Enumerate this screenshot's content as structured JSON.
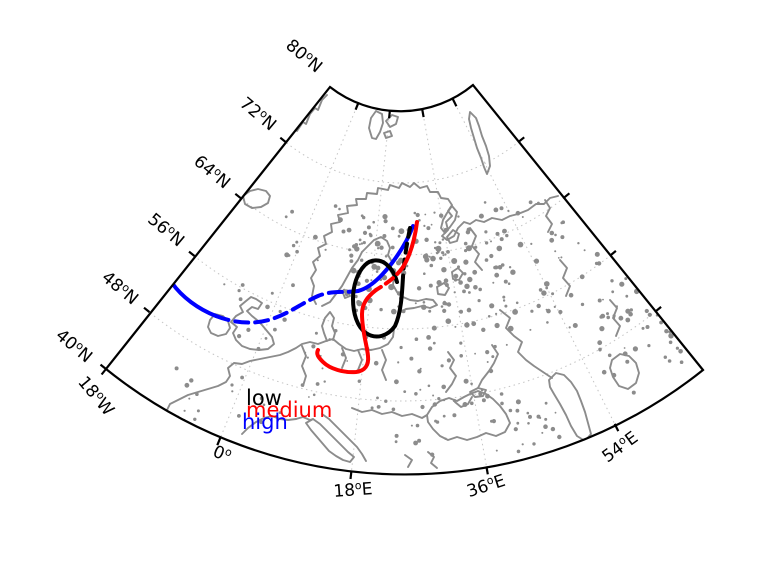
{
  "figure": {
    "background": "#ffffff"
  },
  "colors": {
    "frame": "#000000",
    "coast": "#8c8c8c",
    "graticule": "#c4c4c4",
    "low": "#000000",
    "medium": "#ff0000",
    "high": "#0000ff"
  },
  "axis": {
    "lat_labels": [
      {
        "value": "80",
        "sup": "o",
        "suffix": "N"
      },
      {
        "value": "72",
        "sup": "o",
        "suffix": "N"
      },
      {
        "value": "64",
        "sup": "o",
        "suffix": "N"
      },
      {
        "value": "56",
        "sup": "o",
        "suffix": "N"
      },
      {
        "value": "48",
        "sup": "o",
        "suffix": "N"
      },
      {
        "value": "40",
        "sup": "o",
        "suffix": "N"
      }
    ],
    "lon_labels": [
      {
        "value": "18",
        "sup": "o",
        "suffix": "W"
      },
      {
        "value": "0",
        "sup": "o",
        "suffix": ""
      },
      {
        "value": "18",
        "sup": "o",
        "suffix": "E"
      },
      {
        "value": "36",
        "sup": "o",
        "suffix": "E"
      },
      {
        "value": "54",
        "sup": "o",
        "suffix": "E"
      }
    ]
  },
  "legend": {
    "items": [
      {
        "label": "low",
        "color": "#000000"
      },
      {
        "label": "medium",
        "color": "#ff0000"
      },
      {
        "label": "high",
        "color": "#0000ff"
      }
    ]
  }
}
